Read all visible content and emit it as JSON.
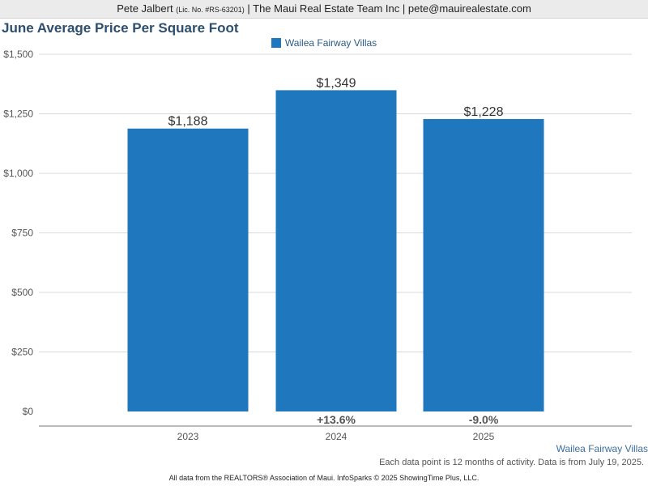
{
  "header": {
    "agent_name": "Pete Jalbert",
    "license": "(Lic. No. #RS-63201)",
    "rest": "| The Maui Real Estate Team Inc | pete@mauirealestate.com"
  },
  "chart_data": {
    "type": "bar",
    "title": "June Average Price Per Square Foot",
    "categories": [
      "2023",
      "2024",
      "2025"
    ],
    "series": [
      {
        "name": "Wailea Fairway Villas",
        "values": [
          1188,
          1349,
          1228
        ],
        "color": "#1f77bd"
      }
    ],
    "value_labels": [
      "$1,188",
      "$1,349",
      "$1,228"
    ],
    "change_labels": [
      "",
      "+13.6%",
      "-9.0%"
    ],
    "yticks": [
      0,
      250,
      500,
      750,
      1000,
      1250,
      1500
    ],
    "ytick_labels": [
      "$0",
      "$250",
      "$500",
      "$750",
      "$1,000",
      "$1,250",
      "$1,500"
    ],
    "ylim": [
      0,
      1500
    ],
    "grid": true,
    "legend_position": "top-center"
  },
  "footer": {
    "series_label": "Wailea Fairway Villas",
    "note": "Each data point is 12 months of activity. Data is from July 19, 2025.",
    "credit": "All data from the REALTORS® Association of Maui. InfoSparks © 2025 ShowingTime Plus, LLC."
  }
}
